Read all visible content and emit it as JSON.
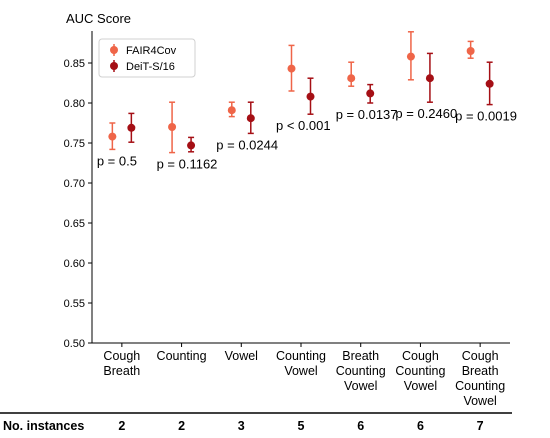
{
  "chart_data": {
    "type": "scatter",
    "ylabel": "AUC Score",
    "ylim": [
      0.5,
      0.89
    ],
    "yticks": [
      "0.50",
      "0.55",
      "0.60",
      "0.65",
      "0.70",
      "0.75",
      "0.80",
      "0.85"
    ],
    "categories": [
      [
        "Cough",
        "Breath"
      ],
      [
        "Counting"
      ],
      [
        "Vowel"
      ],
      [
        "Counting",
        "Vowel"
      ],
      [
        "Breath",
        "Counting",
        "Vowel"
      ],
      [
        "Cough",
        "Counting",
        "Vowel"
      ],
      [
        "Cough",
        "Breath",
        "Counting",
        "Vowel"
      ]
    ],
    "series": [
      {
        "name": "FAIR4Cov",
        "color": "#ef6548",
        "values": [
          0.758,
          0.77,
          0.791,
          0.843,
          0.831,
          0.858,
          0.865
        ],
        "err_low": [
          0.742,
          0.738,
          0.783,
          0.815,
          0.821,
          0.829,
          0.856
        ],
        "err_high": [
          0.775,
          0.801,
          0.801,
          0.872,
          0.851,
          0.889,
          0.877
        ]
      },
      {
        "name": "DeiT-S/16",
        "color": "#a50f15",
        "values": [
          0.769,
          0.747,
          0.781,
          0.808,
          0.812,
          0.831,
          0.824
        ],
        "err_low": [
          0.751,
          0.739,
          0.762,
          0.786,
          0.8,
          0.801,
          0.798
        ],
        "err_high": [
          0.787,
          0.757,
          0.801,
          0.831,
          0.823,
          0.862,
          0.851
        ]
      }
    ],
    "p_values": [
      "p = 0.5",
      "p = 0.1162",
      "p = 0.0244",
      "p < 0.001",
      "p = 0.0137",
      "p = 0.2460",
      "p = 0.0019"
    ],
    "legend_position": "top-left",
    "grid": false
  },
  "instances": {
    "label": "No. instances",
    "values": [
      "2",
      "2",
      "3",
      "5",
      "6",
      "6",
      "7"
    ]
  }
}
